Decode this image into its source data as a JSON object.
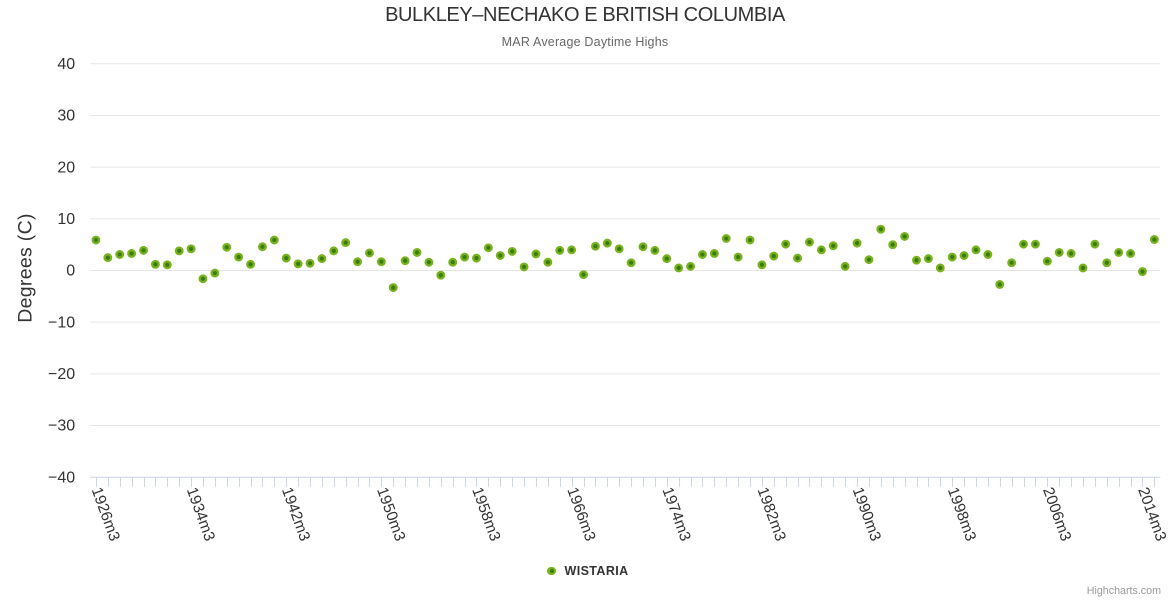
{
  "chart": {
    "title": "BULKLEY–NECHAKO E BRITISH COLUMBIA",
    "subtitle": "MAR Average Daytime Highs",
    "y_axis_title": "Degrees (C)",
    "legend_label": "WISTARIA",
    "credits": "Highcharts.com",
    "colors": {
      "marker_outer": "#79b21f",
      "marker_inner": "#3a7d0d",
      "gridline": "#e6e6e6",
      "axis_line": "#ccd6eb",
      "tick": "#ccd6eb",
      "axis_label": "#333333",
      "title": "#333333",
      "subtitle": "#666666",
      "credits": "#999999"
    }
  },
  "chart_data": {
    "type": "scatter",
    "title": "BULKLEY–NECHAKO E BRITISH COLUMBIA",
    "subtitle": "MAR Average Daytime Highs",
    "xlabel": "",
    "ylabel": "Degrees (C)",
    "ylim": [
      -40,
      40
    ],
    "y_ticks": [
      {
        "value": 40,
        "label": "40"
      },
      {
        "value": 30,
        "label": "30"
      },
      {
        "value": 20,
        "label": "20"
      },
      {
        "value": 10,
        "label": "10"
      },
      {
        "value": 0,
        "label": "0"
      },
      {
        "value": -10,
        "label": "−10"
      },
      {
        "value": -20,
        "label": "−20"
      },
      {
        "value": -30,
        "label": "−30"
      },
      {
        "value": -40,
        "label": "−40"
      }
    ],
    "x_label_step": 8,
    "grid": true,
    "legend_position": "bottom-center",
    "categories": [
      "1926m3",
      "1927m3",
      "1928m3",
      "1929m3",
      "1930m3",
      "1931m3",
      "1932m3",
      "1933m3",
      "1934m3",
      "1935m3",
      "1936m3",
      "1937m3",
      "1938m3",
      "1939m3",
      "1940m3",
      "1941m3",
      "1942m3",
      "1943m3",
      "1944m3",
      "1945m3",
      "1946m3",
      "1947m3",
      "1948m3",
      "1949m3",
      "1950m3",
      "1951m3",
      "1952m3",
      "1953m3",
      "1954m3",
      "1955m3",
      "1956m3",
      "1957m3",
      "1958m3",
      "1959m3",
      "1960m3",
      "1961m3",
      "1962m3",
      "1963m3",
      "1964m3",
      "1965m3",
      "1966m3",
      "1967m3",
      "1968m3",
      "1969m3",
      "1970m3",
      "1971m3",
      "1972m3",
      "1973m3",
      "1974m3",
      "1975m3",
      "1976m3",
      "1977m3",
      "1978m3",
      "1979m3",
      "1980m3",
      "1981m3",
      "1982m3",
      "1983m3",
      "1984m3",
      "1985m3",
      "1986m3",
      "1987m3",
      "1988m3",
      "1989m3",
      "1990m3",
      "1991m3",
      "1992m3",
      "1993m3",
      "1994m3",
      "1995m3",
      "1996m3",
      "1997m3",
      "1998m3",
      "1999m3",
      "2000m3",
      "2001m3",
      "2002m3",
      "2003m3",
      "2004m3",
      "2005m3",
      "2006m3",
      "2007m3",
      "2008m3",
      "2009m3",
      "2010m3",
      "2011m3",
      "2012m3",
      "2013m3",
      "2014m3",
      "2015m3"
    ],
    "series": [
      {
        "name": "WISTARIA",
        "values": [
          5.8,
          2.4,
          3.0,
          3.2,
          3.8,
          1.1,
          1.0,
          3.7,
          4.1,
          -1.7,
          -0.6,
          4.4,
          2.5,
          1.1,
          4.5,
          5.8,
          2.3,
          1.2,
          1.3,
          2.2,
          3.7,
          5.3,
          1.6,
          3.3,
          1.6,
          -3.4,
          1.8,
          3.4,
          1.5,
          -1.0,
          1.5,
          2.5,
          2.3,
          4.3,
          2.8,
          3.6,
          0.6,
          3.1,
          1.5,
          3.8,
          3.9,
          -0.9,
          4.6,
          5.2,
          4.1,
          1.4,
          4.5,
          3.8,
          2.2,
          0.4,
          0.7,
          3.0,
          3.2,
          6.1,
          2.5,
          5.8,
          1.0,
          2.7,
          5.0,
          2.3,
          5.4,
          3.9,
          4.7,
          0.7,
          5.2,
          2.0,
          7.9,
          4.9,
          6.5,
          1.9,
          2.2,
          0.4,
          2.5,
          2.8,
          3.9,
          3.0,
          -2.8,
          1.4,
          5.0,
          5.0,
          1.7,
          3.4,
          3.2,
          0.4,
          5.0,
          1.4,
          3.4,
          3.2,
          -0.3,
          5.9
        ]
      }
    ]
  }
}
